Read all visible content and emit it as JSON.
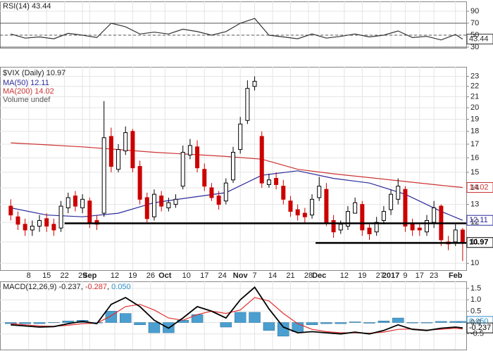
{
  "chart_data": [
    {
      "type": "line",
      "panel": "rsi",
      "xlim": [
        -3,
        127
      ],
      "ylim": [
        28.8,
        106.5
      ],
      "yticks": [
        90,
        70,
        50,
        30
      ],
      "ref_lines": [
        70,
        30
      ],
      "dashed_lines": [
        50
      ],
      "grid": true,
      "series": [
        {
          "name": "RSI(14)",
          "color": "#333333",
          "x": [
            0,
            4,
            8,
            12,
            16,
            20,
            24,
            28,
            32,
            36,
            40,
            44,
            48,
            52,
            56,
            60,
            64,
            68,
            72,
            76,
            80,
            84,
            88,
            92,
            96,
            100,
            104,
            108,
            112,
            116,
            120,
            124,
            126
          ],
          "values": [
            52,
            45,
            47,
            44,
            53,
            50,
            46,
            70,
            64,
            52,
            55,
            52,
            60,
            56,
            50,
            56,
            70,
            78,
            50,
            47,
            44,
            52,
            45,
            48,
            52,
            47,
            50,
            57,
            46,
            48,
            42,
            51,
            43.44
          ]
        }
      ]
    },
    {
      "type": "candlestick",
      "panel": "price",
      "title": "$VIX (Daily)",
      "volume_label": "Volume undef",
      "log_scale": true,
      "grid": true,
      "xlim": [
        -3,
        127
      ],
      "ylim": [
        9.7,
        24
      ],
      "yticks": [
        10,
        11,
        12,
        13,
        14,
        15,
        16,
        17,
        18,
        19,
        20,
        21,
        22,
        23
      ],
      "xticks": [
        {
          "value": 5,
          "label": "8"
        },
        {
          "value": 10,
          "label": "15"
        },
        {
          "value": 15,
          "label": "22"
        },
        {
          "value": 20,
          "label": "29"
        },
        {
          "value": 22,
          "label": "Sep"
        },
        {
          "value": 29,
          "label": "12"
        },
        {
          "value": 34,
          "label": "19"
        },
        {
          "value": 39,
          "label": "26"
        },
        {
          "value": 43,
          "label": "Oct"
        },
        {
          "value": 49,
          "label": "10"
        },
        {
          "value": 54,
          "label": "17"
        },
        {
          "value": 59,
          "label": "24"
        },
        {
          "value": 64,
          "label": "Nov"
        },
        {
          "value": 68,
          "label": "7"
        },
        {
          "value": 73,
          "label": "14"
        },
        {
          "value": 78,
          "label": "21"
        },
        {
          "value": 83,
          "label": "28"
        },
        {
          "value": 86,
          "label": "Dec"
        },
        {
          "value": 93,
          "label": "12"
        },
        {
          "value": 98,
          "label": "19"
        },
        {
          "value": 103,
          "label": "27"
        },
        {
          "value": 106,
          "label": "2017"
        },
        {
          "value": 110,
          "label": "9"
        },
        {
          "value": 114,
          "label": "17"
        },
        {
          "value": 118,
          "label": "23"
        },
        {
          "value": 124,
          "label": "Feb"
        }
      ],
      "up_color": "#000000",
      "down_color": "#cc0000",
      "x": [
        0,
        2,
        4,
        6,
        8,
        10,
        12,
        14,
        16,
        18,
        20,
        22,
        24,
        26,
        28,
        30,
        32,
        34,
        36,
        38,
        40,
        42,
        44,
        46,
        48,
        50,
        52,
        54,
        56,
        58,
        60,
        62,
        64,
        66,
        68,
        70,
        72,
        74,
        76,
        78,
        80,
        82,
        84,
        86,
        88,
        90,
        92,
        94,
        96,
        98,
        100,
        102,
        104,
        106,
        108,
        110,
        112,
        114,
        116,
        118,
        120,
        122,
        124,
        126
      ],
      "open": [
        12.9,
        12.3,
        11.9,
        11.6,
        11.8,
        12.2,
        11.9,
        11.7,
        12.8,
        13.5,
        12.8,
        13.2,
        12.1,
        12.5,
        17.6,
        15.2,
        16.5,
        18.0,
        15.4,
        13.4,
        12.3,
        13.5,
        12.8,
        13.0,
        14.1,
        16.2,
        16.8,
        15.2,
        14.0,
        13.5,
        13.2,
        14.5,
        16.6,
        18.9,
        22.0,
        17.6,
        14.2,
        14.6,
        14.1,
        13.2,
        12.7,
        12.5,
        12.4,
        13.4,
        13.9,
        12.1,
        11.6,
        11.8,
        12.5,
        13.0,
        11.7,
        11.5,
        12.1,
        12.7,
        13.3,
        13.9,
        11.9,
        11.7,
        11.5,
        12.0,
        12.9,
        11.0,
        11.0,
        11.6
      ],
      "high": [
        13.3,
        12.6,
        12.2,
        12.1,
        12.4,
        12.5,
        12.2,
        13.2,
        13.7,
        13.8,
        13.6,
        13.4,
        12.4,
        20.6,
        18.3,
        17.0,
        18.4,
        18.2,
        15.8,
        13.7,
        13.9,
        13.8,
        13.4,
        13.6,
        16.9,
        17.4,
        17.3,
        15.6,
        14.3,
        13.8,
        14.6,
        16.8,
        19.2,
        22.6,
        23.0,
        18.0,
        14.9,
        15.0,
        14.5,
        13.5,
        13.0,
        12.8,
        13.6,
        14.7,
        14.3,
        12.4,
        12.1,
        12.9,
        13.4,
        13.2,
        11.9,
        12.3,
        12.9,
        13.9,
        14.6,
        14.1,
        12.2,
        11.9,
        12.4,
        13.2,
        13.0,
        11.3,
        11.9,
        11.7
      ],
      "low": [
        12.1,
        11.6,
        11.3,
        11.3,
        11.5,
        11.5,
        11.3,
        11.5,
        12.5,
        12.6,
        12.5,
        11.7,
        11.6,
        12.3,
        15.0,
        15.0,
        16.2,
        15.0,
        13.0,
        12.0,
        12.1,
        12.6,
        12.6,
        12.8,
        13.9,
        15.9,
        15.0,
        13.8,
        13.2,
        12.7,
        13.0,
        14.3,
        16.3,
        18.6,
        21.6,
        14.0,
        14.0,
        13.9,
        13.0,
        12.3,
        12.1,
        12.0,
        12.2,
        13.2,
        11.8,
        11.2,
        11.4,
        11.6,
        12.6,
        11.3,
        11.1,
        11.3,
        11.9,
        12.4,
        13.0,
        11.5,
        11.3,
        11.3,
        11.3,
        11.7,
        10.8,
        10.6,
        10.8,
        10.1
      ],
      "close": [
        12.4,
        11.9,
        11.6,
        11.8,
        12.1,
        11.8,
        11.6,
        12.9,
        13.4,
        12.9,
        13.3,
        12.0,
        11.9,
        17.5,
        15.4,
        16.6,
        17.9,
        15.3,
        13.3,
        12.2,
        13.6,
        12.9,
        13.1,
        13.3,
        16.4,
        16.9,
        15.3,
        14.1,
        13.4,
        13.0,
        14.3,
        16.4,
        18.6,
        21.8,
        22.5,
        14.3,
        14.5,
        14.2,
        13.3,
        12.6,
        12.4,
        12.3,
        13.3,
        14.1,
        12.0,
        11.5,
        11.9,
        12.6,
        13.1,
        11.6,
        11.4,
        12.0,
        12.6,
        13.6,
        14.1,
        11.8,
        11.6,
        11.6,
        12.1,
        12.8,
        11.1,
        10.9,
        11.6,
        10.97
      ],
      "series": [
        {
          "name": "MA(50)",
          "color": "#2a2a9a",
          "x": [
            0,
            10,
            20,
            30,
            40,
            50,
            60,
            70,
            80,
            90,
            100,
            110,
            120,
            126
          ],
          "values": [
            12.8,
            12.4,
            12.3,
            12.5,
            13.1,
            13.4,
            13.7,
            14.8,
            15.1,
            14.6,
            14.3,
            13.6,
            12.6,
            12.11
          ]
        },
        {
          "name": "MA(200)",
          "color": "#cc3333",
          "x": [
            0,
            10,
            20,
            30,
            40,
            50,
            60,
            70,
            80,
            90,
            100,
            110,
            120,
            126
          ],
          "values": [
            17.1,
            16.95,
            16.8,
            16.6,
            16.4,
            16.25,
            16.1,
            15.9,
            15.2,
            14.9,
            14.65,
            14.4,
            14.15,
            14.02
          ]
        }
      ],
      "hlines": [
        {
          "value": 11.95,
          "x": [
            15,
            127
          ]
        },
        {
          "value": 10.95,
          "x": [
            85,
            127
          ]
        }
      ]
    },
    {
      "type": "macd",
      "panel": "macd",
      "title": "MACD(12,26,9)",
      "xlim": [
        -3,
        127
      ],
      "ylim": [
        -1.19,
        1.81
      ],
      "grid": true,
      "yticks": [
        1.5,
        {
          "value": 1,
          "label": "1.0"
        },
        0.5,
        {
          "value": 0,
          "label": "0.0"
        },
        -0.5
      ],
      "readouts": [
        -0.237,
        -0.287,
        {
          "value": 0.05,
          "label": "0.050"
        }
      ],
      "series": [
        {
          "name": "MACD",
          "color": "#000000",
          "x": [
            0,
            4,
            8,
            12,
            16,
            20,
            24,
            28,
            32,
            36,
            40,
            44,
            48,
            52,
            56,
            60,
            64,
            68,
            72,
            76,
            80,
            84,
            88,
            92,
            96,
            100,
            104,
            108,
            112,
            116,
            120,
            124,
            126
          ],
          "values": [
            -0.1,
            -0.15,
            -0.2,
            -0.18,
            -0.05,
            0.05,
            -0.05,
            0.8,
            1.1,
            0.7,
            0.1,
            -0.25,
            0.2,
            0.7,
            0.5,
            0.2,
            1.0,
            1.55,
            0.6,
            -0.2,
            -0.45,
            -0.4,
            -0.45,
            -0.5,
            -0.42,
            -0.5,
            -0.35,
            -0.1,
            -0.3,
            -0.35,
            -0.25,
            -0.2,
            -0.237
          ]
        },
        {
          "name": "Signal",
          "color": "#e03030",
          "x": [
            0,
            4,
            8,
            12,
            16,
            20,
            24,
            28,
            32,
            36,
            40,
            44,
            48,
            52,
            56,
            60,
            64,
            68,
            72,
            76,
            80,
            84,
            88,
            92,
            96,
            100,
            104,
            108,
            112,
            116,
            120,
            124,
            126
          ],
          "values": [
            -0.05,
            -0.1,
            -0.15,
            -0.17,
            -0.12,
            -0.05,
            -0.03,
            0.3,
            0.7,
            0.8,
            0.55,
            0.2,
            0.1,
            0.35,
            0.5,
            0.4,
            0.55,
            1.1,
            0.95,
            0.4,
            -0.05,
            -0.3,
            -0.4,
            -0.45,
            -0.45,
            -0.47,
            -0.42,
            -0.3,
            -0.28,
            -0.33,
            -0.3,
            -0.25,
            -0.287
          ]
        },
        {
          "name": "Histogram",
          "color": "#4a9fd0",
          "x": [
            0,
            4,
            8,
            12,
            16,
            20,
            24,
            28,
            32,
            36,
            40,
            44,
            48,
            52,
            56,
            60,
            64,
            68,
            72,
            76,
            80,
            84,
            88,
            92,
            96,
            100,
            104,
            108,
            112,
            116,
            120,
            124,
            126
          ],
          "values": [
            -0.05,
            -0.05,
            -0.05,
            -0.01,
            0.07,
            0.1,
            -0.02,
            0.5,
            0.4,
            -0.1,
            -0.45,
            -0.45,
            0.1,
            0.35,
            0,
            -0.2,
            0.45,
            0.45,
            -0.35,
            -0.6,
            -0.4,
            -0.1,
            -0.05,
            -0.05,
            0.03,
            -0.03,
            0.07,
            0.2,
            -0.02,
            -0.02,
            0.05,
            0.05,
            0.05
          ]
        }
      ]
    }
  ]
}
